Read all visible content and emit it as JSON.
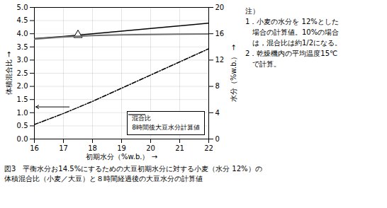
{
  "chart_data": {
    "type": "line",
    "x": [
      16,
      17,
      18,
      19,
      20,
      21,
      22
    ],
    "series": [
      {
        "name": "混合比",
        "color": "#000000",
        "line_style": "dashdot",
        "values": [
          0.55,
          0.97,
          1.43,
          1.93,
          2.43,
          2.93,
          3.43
        ]
      },
      {
        "color": "#000000",
        "line_style": "solid",
        "values": [
          3.82,
          3.9,
          4.0,
          4.1,
          4.2,
          4.3,
          4.4
        ]
      },
      {
        "name": "8時間後大豆水分計算値",
        "color": "#707070",
        "line_style": "solid",
        "axis": "y2",
        "values": [
          15.2,
          15.5,
          15.72,
          15.82,
          15.9,
          15.95,
          15.98
        ]
      }
    ],
    "markers": [
      {
        "x": 17.5,
        "y": 3.95,
        "marker": "triangle"
      }
    ],
    "arrows": [
      {
        "x_start": 17.2,
        "x_end": 16.05,
        "y": 1.22
      }
    ],
    "x_label": "初期水分（%w.b.）",
    "y_label": "体積混合比",
    "y2_label": "水分（%w.b.）",
    "xlim": [
      16,
      22
    ],
    "ylim": [
      0,
      5
    ],
    "y2lim": [
      0,
      20
    ],
    "xticks": [
      16,
      17,
      18,
      19,
      20,
      21,
      22
    ],
    "yticks": [
      {
        "value": 0,
        "label": "0.0"
      },
      {
        "value": 0.5,
        "label": "0.5"
      },
      {
        "value": 1,
        "label": "1.0"
      },
      {
        "value": 1.5,
        "label": "1.5"
      },
      {
        "value": 2,
        "label": "2.0"
      },
      {
        "value": 2.5,
        "label": "2.5"
      },
      {
        "value": 3,
        "label": "3.0"
      },
      {
        "value": 3.5,
        "label": "3.5"
      },
      {
        "value": 4,
        "label": "4.0"
      },
      {
        "value": 4.5,
        "label": "4.5"
      },
      {
        "value": 5,
        "label": "5.0"
      }
    ],
    "y2ticks": [
      0,
      4,
      8,
      12,
      16,
      20
    ],
    "grid": true,
    "legend": "lower right",
    "annotations": [
      "注）",
      "1．小麦の水分を 12%とした",
      "　場合の計算値。10%の場合",
      "　は，混合比は約1/2になる。",
      "2．乾燥機内の平均温度15℃",
      "　で計算。"
    ],
    "caption": [
      "図3　平衡水分お14.5%にするための大豆初期水分に対する小麦（水分 12%）の",
      "体積混合比（小麦／大豆）と８時間経過後の大豆水分の計算値"
    ]
  }
}
